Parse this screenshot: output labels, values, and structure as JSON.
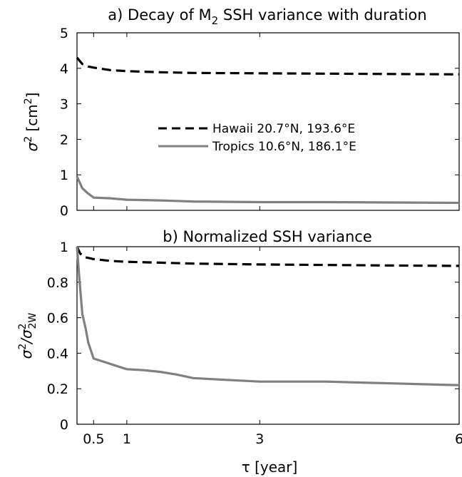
{
  "chart_data": [
    {
      "type": "line",
      "title": "a) Decay of M",
      "title_sub": "2",
      "title_rest": " SSH variance with duration",
      "ylabel": "σ",
      "ylabel_sup": "2",
      "ylabel_unit": " [cm",
      "ylabel_unit_sup": "2",
      "ylabel_end": "]",
      "xlim": [
        0.25,
        6
      ],
      "ylim": [
        0,
        5
      ],
      "yticks": [
        "0",
        "1",
        "2",
        "3",
        "4",
        "5"
      ],
      "xticks": [
        0.5,
        1,
        3,
        6
      ],
      "legend": "center",
      "series": [
        {
          "name": "Hawaii  20.7°N, 193.6°E",
          "color": "#000000",
          "dash": "dashed",
          "x": [
            0.25,
            0.33,
            0.42,
            0.5,
            0.75,
            1,
            1.5,
            2,
            3,
            4,
            5,
            6
          ],
          "y": [
            4.3,
            4.12,
            4.05,
            4.02,
            3.95,
            3.92,
            3.89,
            3.87,
            3.86,
            3.85,
            3.84,
            3.83
          ]
        },
        {
          "name": "Tropics 10.6°N, 186.1°E",
          "color": "#808080",
          "dash": "solid",
          "x": [
            0.25,
            0.33,
            0.42,
            0.5,
            0.75,
            1,
            1.5,
            2,
            3,
            4,
            5,
            6
          ],
          "y": [
            0.95,
            0.62,
            0.47,
            0.36,
            0.34,
            0.3,
            0.28,
            0.25,
            0.23,
            0.23,
            0.22,
            0.21
          ]
        }
      ]
    },
    {
      "type": "line",
      "title": "b) Normalized SSH variance",
      "ylabel": "σ",
      "ylabel_sup": "2",
      "ylabel_sep": "/σ",
      "ylabel_sup2": "2",
      "ylabel_sub2": "2W",
      "xlabel": "τ [year]",
      "xlim": [
        0.25,
        6
      ],
      "ylim": [
        0,
        1
      ],
      "yticks": [
        "0",
        "0.2",
        "0.4",
        "0.6",
        "0.8",
        "1"
      ],
      "xticks": [
        0.5,
        1,
        3,
        6
      ],
      "xtick_labels": [
        "0.5",
        "1",
        "3",
        "6"
      ],
      "series": [
        {
          "name": "Hawaii",
          "color": "#000000",
          "dash": "dashed",
          "x": [
            0.25,
            0.3,
            0.38,
            0.5,
            0.75,
            1,
            1.5,
            2,
            3,
            4,
            5,
            6
          ],
          "y": [
            1.0,
            0.96,
            0.94,
            0.93,
            0.92,
            0.915,
            0.91,
            0.905,
            0.9,
            0.897,
            0.894,
            0.892
          ]
        },
        {
          "name": "Tropics",
          "color": "#808080",
          "dash": "solid",
          "x": [
            0.25,
            0.29,
            0.33,
            0.38,
            0.42,
            0.5,
            0.67,
            0.83,
            1,
            1.25,
            1.5,
            1.75,
            2,
            2.5,
            3,
            3.5,
            4,
            4.5,
            5,
            5.5,
            6
          ],
          "y": [
            1.0,
            0.8,
            0.62,
            0.54,
            0.46,
            0.37,
            0.35,
            0.33,
            0.31,
            0.305,
            0.295,
            0.28,
            0.26,
            0.25,
            0.24,
            0.24,
            0.24,
            0.235,
            0.23,
            0.225,
            0.22
          ]
        }
      ]
    }
  ]
}
